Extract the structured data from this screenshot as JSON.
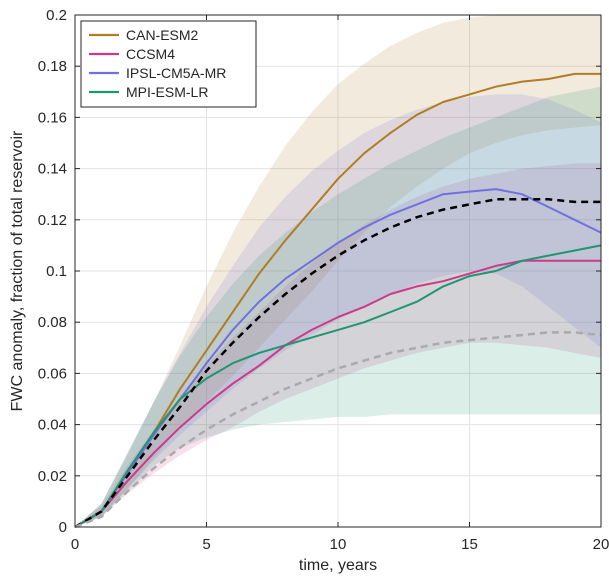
{
  "chart_data": {
    "type": "line",
    "xlabel": "time, years",
    "ylabel": "FWC anomaly, fraction of total reservoir",
    "xlim": [
      0,
      20
    ],
    "ylim": [
      0,
      0.2
    ],
    "xticks": [
      0,
      5,
      10,
      15,
      20
    ],
    "yticks": [
      0,
      0.02,
      0.04,
      0.06,
      0.08,
      0.1,
      0.12,
      0.14,
      0.16,
      0.18,
      0.2
    ],
    "xtick_labels": [
      "0",
      "5",
      "10",
      "15",
      "20"
    ],
    "ytick_labels": [
      "0",
      "0.02",
      "0.04",
      "0.06",
      "0.08",
      "0.1",
      "0.12",
      "0.14",
      "0.16",
      "0.18",
      "0.2"
    ],
    "grid": true,
    "legend_position": "top-left",
    "series": [
      {
        "name": "CAN-ESM2",
        "color": "#b07d25",
        "x": [
          0,
          1,
          2,
          3,
          4,
          5,
          6,
          7,
          8,
          9,
          10,
          11,
          12,
          13,
          14,
          15,
          16,
          17,
          18,
          19,
          20
        ],
        "y": [
          0,
          0.006,
          0.021,
          0.037,
          0.054,
          0.069,
          0.084,
          0.099,
          0.112,
          0.124,
          0.136,
          0.146,
          0.154,
          0.161,
          0.166,
          0.169,
          0.172,
          0.174,
          0.175,
          0.177,
          0.177
        ],
        "band_upper": [
          0,
          0.009,
          0.028,
          0.049,
          0.071,
          0.094,
          0.115,
          0.133,
          0.149,
          0.162,
          0.173,
          0.181,
          0.188,
          0.193,
          0.197,
          0.199,
          0.2,
          0.2,
          0.2,
          0.2,
          0.2
        ],
        "band_lower": [
          0,
          0.004,
          0.015,
          0.027,
          0.039,
          0.049,
          0.059,
          0.07,
          0.081,
          0.092,
          0.104,
          0.115,
          0.125,
          0.133,
          0.14,
          0.146,
          0.15,
          0.153,
          0.155,
          0.156,
          0.157
        ]
      },
      {
        "name": "CCSM4",
        "color": "#cc3a8a",
        "x": [
          0,
          1,
          2,
          3,
          4,
          5,
          6,
          7,
          8,
          9,
          10,
          11,
          12,
          13,
          14,
          15,
          16,
          17,
          18,
          19,
          20
        ],
        "y": [
          0,
          0.006,
          0.018,
          0.029,
          0.039,
          0.048,
          0.056,
          0.063,
          0.071,
          0.077,
          0.082,
          0.086,
          0.091,
          0.094,
          0.096,
          0.099,
          0.102,
          0.104,
          0.104,
          0.104,
          0.104
        ],
        "band_upper": [
          0,
          0.008,
          0.024,
          0.038,
          0.051,
          0.063,
          0.074,
          0.084,
          0.094,
          0.103,
          0.111,
          0.118,
          0.124,
          0.129,
          0.133,
          0.136,
          0.138,
          0.14,
          0.141,
          0.142,
          0.142
        ],
        "band_lower": [
          0,
          0.004,
          0.013,
          0.021,
          0.028,
          0.034,
          0.039,
          0.045,
          0.05,
          0.054,
          0.058,
          0.062,
          0.065,
          0.068,
          0.07,
          0.072,
          0.072,
          0.071,
          0.07,
          0.068,
          0.066
        ]
      },
      {
        "name": "IPSL-CM5A-MR",
        "color": "#7070e0",
        "x": [
          0,
          1,
          2,
          3,
          4,
          5,
          6,
          7,
          8,
          9,
          10,
          11,
          12,
          13,
          14,
          15,
          16,
          17,
          18,
          19,
          20
        ],
        "y": [
          0,
          0.006,
          0.021,
          0.036,
          0.05,
          0.064,
          0.077,
          0.088,
          0.097,
          0.104,
          0.111,
          0.117,
          0.122,
          0.126,
          0.13,
          0.131,
          0.132,
          0.13,
          0.125,
          0.12,
          0.115
        ],
        "band_upper": [
          0,
          0.009,
          0.029,
          0.049,
          0.068,
          0.086,
          0.102,
          0.117,
          0.129,
          0.139,
          0.147,
          0.154,
          0.159,
          0.163,
          0.166,
          0.168,
          0.169,
          0.169,
          0.167,
          0.163,
          0.158
        ],
        "band_lower": [
          0,
          0.004,
          0.015,
          0.026,
          0.036,
          0.045,
          0.054,
          0.062,
          0.069,
          0.075,
          0.081,
          0.086,
          0.091,
          0.095,
          0.098,
          0.1,
          0.099,
          0.094,
          0.086,
          0.078,
          0.07
        ]
      },
      {
        "name": "MPI-ESM-LR",
        "color": "#1f9670",
        "x": [
          0,
          1,
          2,
          3,
          4,
          5,
          6,
          7,
          8,
          9,
          10,
          11,
          12,
          13,
          14,
          15,
          16,
          17,
          18,
          19,
          20
        ],
        "y": [
          0,
          0.006,
          0.022,
          0.037,
          0.05,
          0.058,
          0.064,
          0.068,
          0.071,
          0.074,
          0.077,
          0.08,
          0.084,
          0.088,
          0.094,
          0.098,
          0.1,
          0.104,
          0.106,
          0.108,
          0.11
        ],
        "band_upper": [
          0,
          0.009,
          0.029,
          0.049,
          0.067,
          0.082,
          0.095,
          0.106,
          0.115,
          0.123,
          0.13,
          0.136,
          0.142,
          0.147,
          0.152,
          0.156,
          0.16,
          0.164,
          0.168,
          0.17,
          0.172
        ],
        "band_lower": [
          0,
          0.004,
          0.014,
          0.024,
          0.031,
          0.035,
          0.038,
          0.04,
          0.041,
          0.042,
          0.043,
          0.043,
          0.044,
          0.044,
          0.044,
          0.044,
          0.044,
          0.044,
          0.044,
          0.044,
          0.044
        ]
      },
      {
        "color": "#000000",
        "dashed": true,
        "x": [
          0,
          1,
          2,
          3,
          4,
          5,
          6,
          7,
          8,
          9,
          10,
          11,
          12,
          13,
          14,
          15,
          16,
          17,
          18,
          19,
          20
        ],
        "y": [
          0,
          0.006,
          0.02,
          0.034,
          0.047,
          0.061,
          0.072,
          0.082,
          0.091,
          0.099,
          0.106,
          0.112,
          0.117,
          0.121,
          0.124,
          0.126,
          0.128,
          0.128,
          0.128,
          0.127,
          0.127
        ]
      },
      {
        "color": "#aaaaaa",
        "dashed": true,
        "x": [
          0,
          1,
          2,
          3,
          4,
          5,
          6,
          7,
          8,
          9,
          10,
          11,
          12,
          13,
          14,
          15,
          16,
          17,
          18,
          19,
          20
        ],
        "y": [
          0,
          0.004,
          0.014,
          0.023,
          0.031,
          0.038,
          0.044,
          0.049,
          0.054,
          0.058,
          0.062,
          0.065,
          0.068,
          0.07,
          0.072,
          0.073,
          0.074,
          0.075,
          0.076,
          0.076,
          0.075
        ]
      }
    ]
  }
}
